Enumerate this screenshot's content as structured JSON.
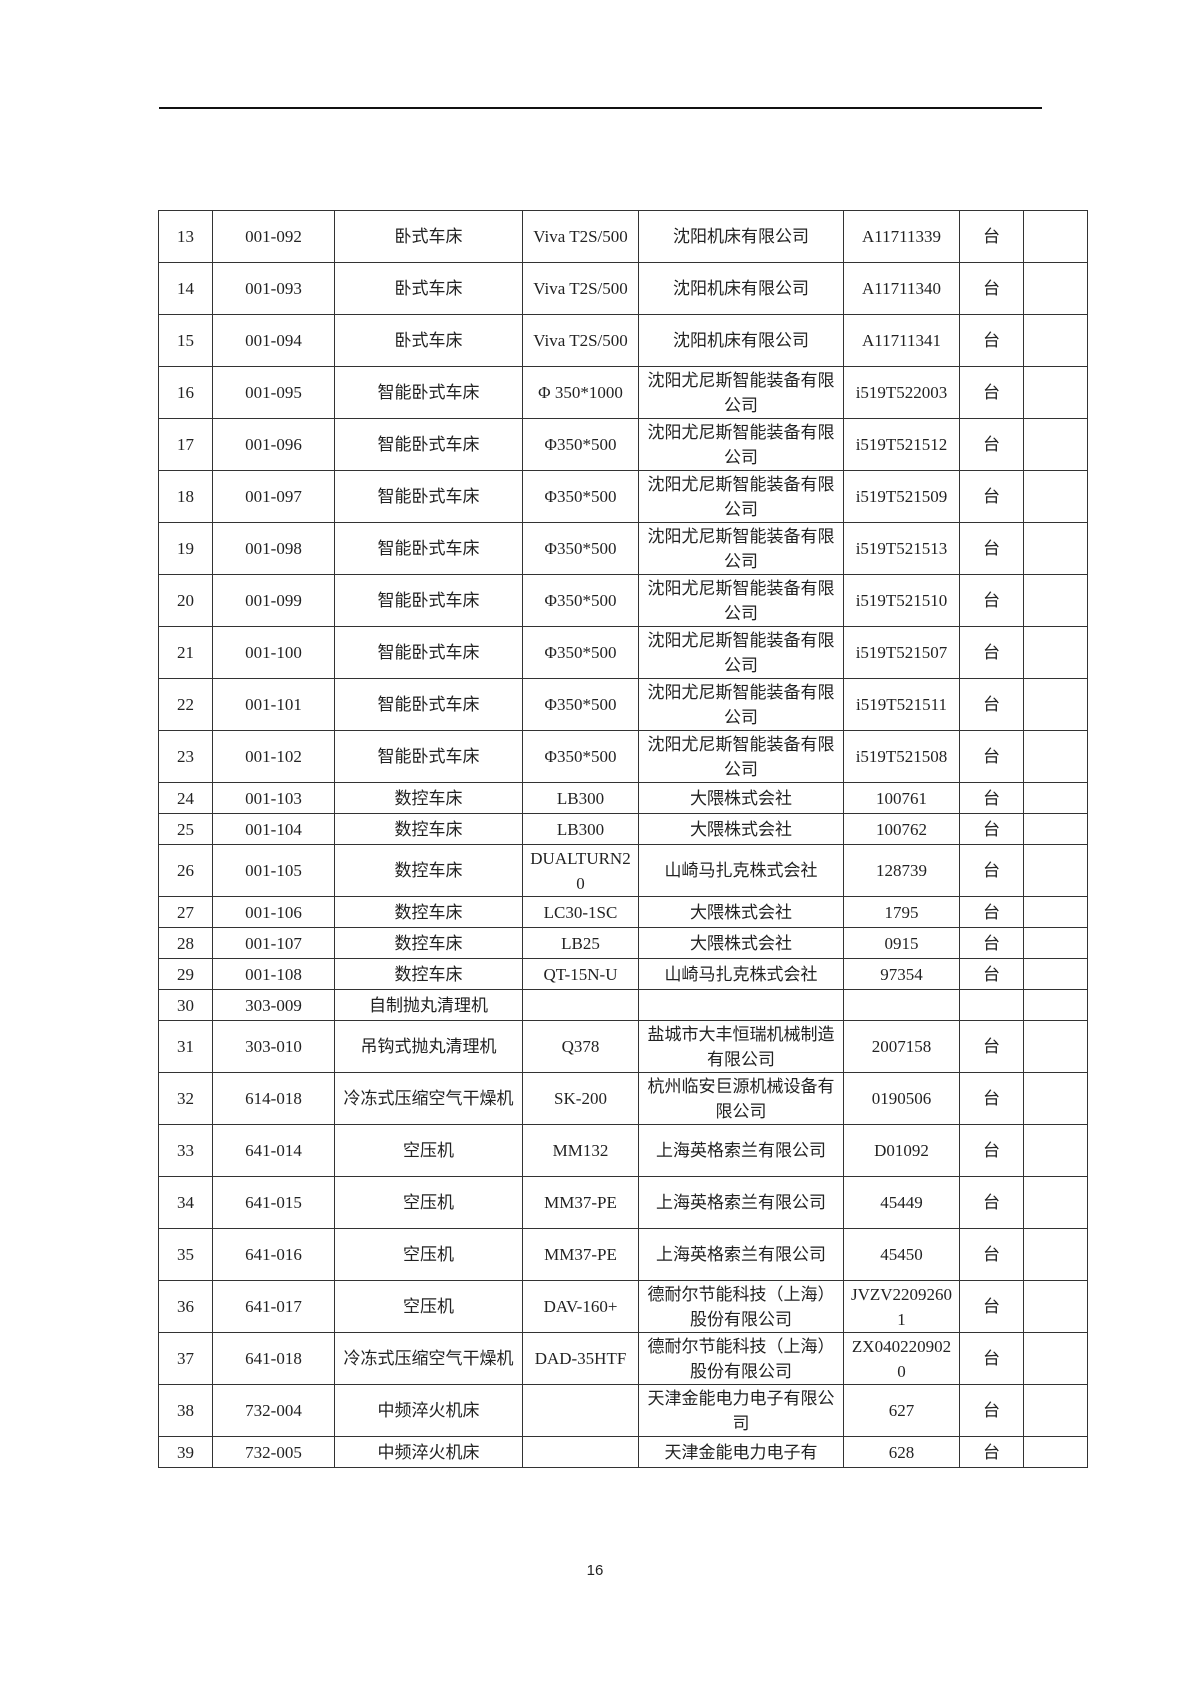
{
  "table": {
    "rows": [
      [
        "13",
        "001-092",
        "卧式车床",
        "Viva T2S/500",
        "沈阳机床有限公司",
        "A11711339",
        "台",
        null
      ],
      [
        "14",
        "001-093",
        "卧式车床",
        "Viva T2S/500",
        "沈阳机床有限公司",
        "A11711340",
        "台",
        null
      ],
      [
        "15",
        "001-094",
        "卧式车床",
        "Viva T2S/500",
        "沈阳机床有限公司",
        "A11711341",
        "台",
        null
      ],
      [
        "16",
        "001-095",
        "智能卧式车床",
        "Φ 350*1000",
        "沈阳尤尼斯智能装备有限公司",
        "i519T522003",
        "台",
        null
      ],
      [
        "17",
        "001-096",
        "智能卧式车床",
        "Φ350*500",
        "沈阳尤尼斯智能装备有限公司",
        "i519T521512",
        "台",
        null
      ],
      [
        "18",
        "001-097",
        "智能卧式车床",
        "Φ350*500",
        "沈阳尤尼斯智能装备有限公司",
        "i519T521509",
        "台",
        null
      ],
      [
        "19",
        "001-098",
        "智能卧式车床",
        "Φ350*500",
        "沈阳尤尼斯智能装备有限公司",
        "i519T521513",
        "台",
        null
      ],
      [
        "20",
        "001-099",
        "智能卧式车床",
        "Φ350*500",
        "沈阳尤尼斯智能装备有限公司",
        "i519T521510",
        "台",
        null
      ],
      [
        "21",
        "001-100",
        "智能卧式车床",
        "Φ350*500",
        "沈阳尤尼斯智能装备有限公司",
        "i519T521507",
        "台",
        null
      ],
      [
        "22",
        "001-101",
        "智能卧式车床",
        "Φ350*500",
        "沈阳尤尼斯智能装备有限公司",
        "i519T521511",
        "台",
        null
      ],
      [
        "23",
        "001-102",
        "智能卧式车床",
        "Φ350*500",
        "沈阳尤尼斯智能装备有限公司",
        "i519T521508",
        "台",
        null
      ],
      [
        "24",
        "001-103",
        "数控车床",
        "LB300",
        "大隈株式会社",
        "100761",
        "台",
        null
      ],
      [
        "25",
        "001-104",
        "数控车床",
        "LB300",
        "大隈株式会社",
        "100762",
        "台",
        null
      ],
      [
        "26",
        "001-105",
        "数控车床",
        "DUALTURN20",
        "山崎马扎克株式会社",
        "128739",
        "台",
        null
      ],
      [
        "27",
        "001-106",
        "数控车床",
        "LC30-1SC",
        "大隈株式会社",
        "1795",
        "台",
        null
      ],
      [
        "28",
        "001-107",
        "数控车床",
        "LB25",
        "大隈株式会社",
        "0915",
        "台",
        null
      ],
      [
        "29",
        "001-108",
        "数控车床",
        "QT-15N-U",
        "山崎马扎克株式会社",
        "97354",
        "台",
        null
      ],
      [
        "30",
        "303-009",
        "自制抛丸清理机",
        null,
        null,
        null,
        null,
        null
      ],
      [
        "31",
        "303-010",
        "吊钩式抛丸清理机",
        "Q378",
        "盐城市大丰恒瑞机械制造有限公司",
        "2007158",
        "台",
        null
      ],
      [
        "32",
        "614-018",
        "冷冻式压缩空气干燥机",
        "SK-200",
        "杭州临安巨源机械设备有限公司",
        "0190506",
        "台",
        null
      ],
      [
        "33",
        "641-014",
        "空压机",
        "MM132",
        "上海英格索兰有限公司",
        "D01092",
        "台",
        null
      ],
      [
        "34",
        "641-015",
        "空压机",
        "MM37-PE",
        "上海英格索兰有限公司",
        "45449",
        "台",
        null
      ],
      [
        "35",
        "641-016",
        "空压机",
        "MM37-PE",
        "上海英格索兰有限公司",
        "45450",
        "台",
        null
      ],
      [
        "36",
        "641-017",
        "空压机",
        "DAV-160+",
        "德耐尔节能科技（上海）股份有限公司",
        "JVZV22092601",
        "台",
        null
      ],
      [
        "37",
        "641-018",
        "冷冻式压缩空气干燥机",
        "DAD-35HTF",
        "德耐尔节能科技（上海）股份有限公司",
        "ZX0402209020",
        "台",
        null
      ],
      [
        "38",
        "732-004",
        "中频淬火机床",
        null,
        "天津金能电力电子有限公司",
        "627",
        "台",
        null
      ],
      [
        "39",
        "732-005",
        "中频淬火机床",
        null,
        "天津金能电力电子有",
        "628",
        "台",
        null
      ]
    ]
  },
  "footer": {
    "page_number": "16"
  }
}
